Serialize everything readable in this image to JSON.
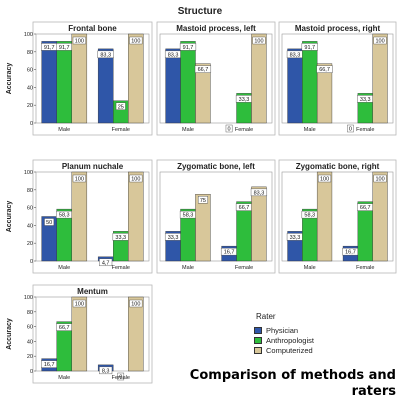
{
  "super_title": "Structure",
  "legend": {
    "title": "Rater",
    "items": [
      {
        "label": "Physician",
        "color": "#2f56a8"
      },
      {
        "label": "Anthropologist",
        "color": "#2ebd3c"
      },
      {
        "label": "Computerized",
        "color": "#d8c79a"
      }
    ]
  },
  "caption": "Comparison of methods and raters",
  "chart_data": [
    {
      "type": "bar",
      "title": "Frontal bone",
      "ylabel": "Accuracy",
      "ylim": [
        0,
        100
      ],
      "yticks": [
        0,
        20,
        40,
        60,
        80,
        100
      ],
      "categories": [
        "Male",
        "Female"
      ],
      "series": [
        {
          "name": "Physician",
          "values": [
            91.7,
            83.3
          ],
          "labels": [
            "91,7",
            "83,3"
          ]
        },
        {
          "name": "Anthropologist",
          "values": [
            91.7,
            25
          ],
          "labels": [
            "91,7",
            "25"
          ]
        },
        {
          "name": "Computerized",
          "values": [
            100,
            100
          ],
          "labels": [
            "100",
            "100"
          ]
        }
      ]
    },
    {
      "type": "bar",
      "title": "Mastoid process, left",
      "ylim": [
        0,
        100
      ],
      "categories": [
        "Male",
        "Female"
      ],
      "series": [
        {
          "name": "Physician",
          "values": [
            83.3,
            0
          ],
          "labels": [
            "83,3",
            "0"
          ]
        },
        {
          "name": "Anthropologist",
          "values": [
            91.7,
            33.3
          ],
          "labels": [
            "91,7",
            "33,3"
          ]
        },
        {
          "name": "Computerized",
          "values": [
            66.7,
            100
          ],
          "labels": [
            "66,7",
            "100"
          ]
        }
      ]
    },
    {
      "type": "bar",
      "title": "Mastoid process, right",
      "ylim": [
        0,
        100
      ],
      "categories": [
        "Male",
        "Female"
      ],
      "series": [
        {
          "name": "Physician",
          "values": [
            83.3,
            0
          ],
          "labels": [
            "83,3",
            "0"
          ]
        },
        {
          "name": "Anthropologist",
          "values": [
            91.7,
            33.3
          ],
          "labels": [
            "91,7",
            "33,3"
          ]
        },
        {
          "name": "Computerized",
          "values": [
            66.7,
            100
          ],
          "labels": [
            "66,7",
            "100"
          ]
        }
      ]
    },
    {
      "type": "bar",
      "title": "Planum nuchale",
      "ylabel": "Accuracy",
      "ylim": [
        0,
        100
      ],
      "yticks": [
        0,
        20,
        40,
        60,
        80,
        100
      ],
      "categories": [
        "Male",
        "Female"
      ],
      "series": [
        {
          "name": "Physician",
          "values": [
            50,
            4.7
          ],
          "labels": [
            "50",
            "4,7"
          ]
        },
        {
          "name": "Anthropologist",
          "values": [
            58.3,
            33.3
          ],
          "labels": [
            "58,3",
            "33,3"
          ]
        },
        {
          "name": "Computerized",
          "values": [
            100,
            100
          ],
          "labels": [
            "100",
            "100"
          ]
        }
      ]
    },
    {
      "type": "bar",
      "title": "Zygomatic bone, left",
      "ylim": [
        0,
        100
      ],
      "categories": [
        "Male",
        "Female"
      ],
      "series": [
        {
          "name": "Physician",
          "values": [
            33.3,
            16.7
          ],
          "labels": [
            "33,3",
            "16,7"
          ]
        },
        {
          "name": "Anthropologist",
          "values": [
            58.3,
            66.7
          ],
          "labels": [
            "58,3",
            "66,7"
          ]
        },
        {
          "name": "Computerized",
          "values": [
            75,
            83.3
          ],
          "labels": [
            "75",
            "83,3"
          ]
        }
      ]
    },
    {
      "type": "bar",
      "title": "Zygomatic bone, right",
      "ylim": [
        0,
        100
      ],
      "categories": [
        "Male",
        "Female"
      ],
      "series": [
        {
          "name": "Physician",
          "values": [
            33.3,
            16.7
          ],
          "labels": [
            "33,3",
            "16,7"
          ]
        },
        {
          "name": "Anthropologist",
          "values": [
            58.3,
            66.7
          ],
          "labels": [
            "58,3",
            "66,7"
          ]
        },
        {
          "name": "Computerized",
          "values": [
            100,
            100
          ],
          "labels": [
            "100",
            "100"
          ]
        }
      ]
    },
    {
      "type": "bar",
      "title": "Mentum",
      "ylabel": "Accuracy",
      "ylim": [
        0,
        100
      ],
      "yticks": [
        0,
        20,
        40,
        60,
        80,
        100
      ],
      "categories": [
        "Male",
        "Female"
      ],
      "series": [
        {
          "name": "Physician",
          "values": [
            16.7,
            8.3
          ],
          "labels": [
            "16,7",
            "8,3"
          ]
        },
        {
          "name": "Anthropologist",
          "values": [
            66.7,
            0
          ],
          "labels": [
            "66,7",
            "0"
          ]
        },
        {
          "name": "Computerized",
          "values": [
            100,
            100
          ],
          "labels": [
            "100",
            "100"
          ]
        }
      ]
    }
  ]
}
